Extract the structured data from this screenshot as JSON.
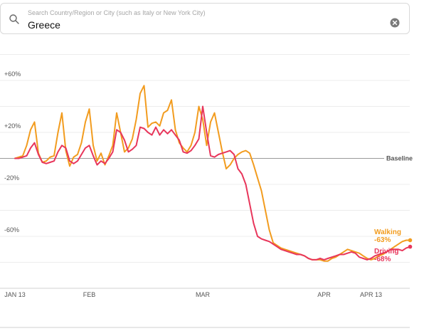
{
  "search": {
    "placeholder": "Search Country/Region or City (such as Italy or New York City)",
    "value": "Greece"
  },
  "icons": {
    "search": "search-icon",
    "clear": "clear-icon"
  },
  "colors": {
    "walking": "#f29c1f",
    "driving": "#e8365b"
  },
  "chart_data": {
    "type": "line",
    "baseline_label": "Baseline",
    "baseline": 0,
    "ylim": [
      -100,
      60
    ],
    "yticks": [
      {
        "value": 60,
        "label": "+60%"
      },
      {
        "value": 20,
        "label": "+20%"
      },
      {
        "value": -20,
        "label": "-20%"
      },
      {
        "value": -60,
        "label": "-60%"
      }
    ],
    "xticks": [
      {
        "day": 0,
        "label": "JAN 13"
      },
      {
        "day": 19,
        "label": "FEB"
      },
      {
        "day": 48,
        "label": "MAR"
      },
      {
        "day": 79,
        "label": "APR"
      },
      {
        "day": 91,
        "label": "APR 13"
      }
    ],
    "series": [
      {
        "name": "Walking",
        "change_label": "-63%",
        "values": [
          0,
          1,
          2,
          10,
          22,
          28,
          4,
          -3,
          -2,
          1,
          2,
          20,
          35,
          6,
          -6,
          1,
          3,
          12,
          28,
          38,
          10,
          -2,
          4,
          -5,
          2,
          10,
          35,
          20,
          5,
          8,
          15,
          30,
          50,
          56,
          24,
          27,
          28,
          25,
          35,
          37,
          45,
          22,
          12,
          8,
          5,
          10,
          20,
          40,
          30,
          10,
          28,
          35,
          20,
          5,
          -8,
          -5,
          0,
          3,
          5,
          6,
          4,
          -5,
          -15,
          -25,
          -40,
          -55,
          -65,
          -67,
          -69,
          -70,
          -71,
          -72,
          -73,
          -74,
          -75,
          -77,
          -78,
          -78,
          -78,
          -79,
          -79,
          -77,
          -76,
          -74,
          -72,
          -70,
          -71,
          -72,
          -73,
          -75,
          -77,
          -78,
          -77,
          -75,
          -74,
          -72,
          -70,
          -68,
          -66,
          -64,
          -63,
          -63
        ]
      },
      {
        "name": "Driving",
        "change_label": "-68%",
        "values": [
          0,
          0,
          1,
          2,
          8,
          12,
          3,
          -3,
          -4,
          -3,
          -2,
          5,
          10,
          8,
          -2,
          -4,
          -2,
          3,
          8,
          10,
          2,
          -5,
          -2,
          -4,
          0,
          5,
          22,
          20,
          14,
          5,
          7,
          10,
          24,
          23,
          20,
          18,
          24,
          18,
          22,
          19,
          22,
          18,
          14,
          5,
          4,
          6,
          10,
          15,
          40,
          20,
          2,
          1,
          3,
          4,
          5,
          6,
          3,
          -8,
          -12,
          -20,
          -35,
          -50,
          -60,
          -62,
          -63,
          -64,
          -66,
          -68,
          -70,
          -71,
          -72,
          -73,
          -74,
          -74,
          -75,
          -77,
          -78,
          -78,
          -77,
          -78,
          -77,
          -76,
          -75,
          -74,
          -74,
          -73,
          -72,
          -73,
          -76,
          -77,
          -78,
          -77,
          -75,
          -74,
          -73,
          -72,
          -70,
          -70,
          -70,
          -71,
          -69,
          -68
        ]
      }
    ]
  }
}
